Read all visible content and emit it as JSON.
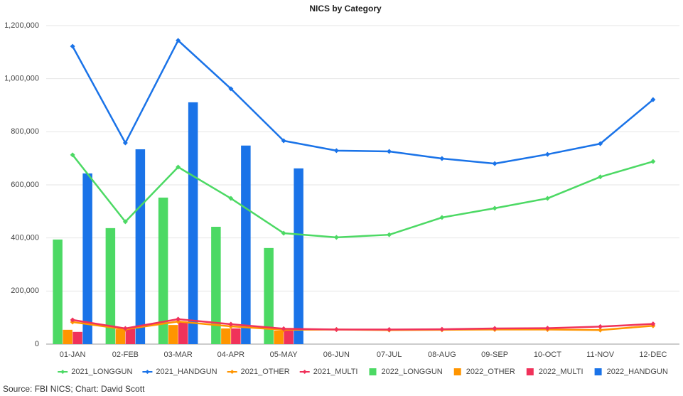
{
  "chart_data": {
    "type": "combo",
    "title": "NICS by Category",
    "source": "Source: FBI NICS; Chart: David Scott",
    "categories": [
      "01-JAN",
      "02-FEB",
      "03-MAR",
      "04-APR",
      "05-MAY",
      "06-JUN",
      "07-JUL",
      "08-AUG",
      "09-SEP",
      "10-OCT",
      "11-NOV",
      "12-DEC"
    ],
    "ylim": [
      0,
      1200000
    ],
    "yticks": [
      0,
      {
        "value": 200000,
        "label": "200,000"
      },
      {
        "value": 400000,
        "label": "400,000"
      },
      {
        "value": 600000,
        "label": "600,000"
      },
      {
        "value": 800000,
        "label": "800,000"
      },
      {
        "value": 1000000,
        "label": "1,000,000"
      },
      {
        "value": 1200000,
        "label": "1,200,000"
      }
    ],
    "grid": true,
    "legend": "bottom",
    "series": [
      {
        "name": "2021_LONGGUN",
        "type": "line",
        "color": "#4cd964",
        "values": [
          713000,
          461000,
          667000,
          549000,
          418000,
          402000,
          412000,
          477000,
          512000,
          549000,
          630000,
          688000
        ]
      },
      {
        "name": "2021_HANDGUN",
        "type": "line",
        "color": "#1a73e8",
        "values": [
          1122000,
          758000,
          1144000,
          962000,
          766000,
          729000,
          726000,
          699000,
          680000,
          715000,
          755000,
          921000
        ]
      },
      {
        "name": "2021_OTHER",
        "type": "line",
        "color": "#ff9500",
        "values": [
          83000,
          56000,
          85000,
          67000,
          54000,
          55000,
          53000,
          54000,
          55000,
          55000,
          53000,
          69000
        ]
      },
      {
        "name": "2021_MULTI",
        "type": "line",
        "color": "#f0325a",
        "values": [
          91000,
          59000,
          94000,
          75000,
          58000,
          55000,
          55000,
          56000,
          59000,
          60000,
          66000,
          76000
        ]
      },
      {
        "name": "2022_LONGGUN",
        "type": "bar",
        "color": "#4cd964",
        "values": [
          394000,
          437000,
          552000,
          442000,
          362000,
          null,
          null,
          null,
          null,
          null,
          null,
          null
        ]
      },
      {
        "name": "2022_OTHER",
        "type": "bar",
        "color": "#ff9500",
        "values": [
          54000,
          56000,
          72000,
          59000,
          51000,
          null,
          null,
          null,
          null,
          null,
          null,
          null
        ]
      },
      {
        "name": "2022_MULTI",
        "type": "bar",
        "color": "#f0325a",
        "values": [
          46000,
          59000,
          83000,
          59000,
          54000,
          null,
          null,
          null,
          null,
          null,
          null,
          null
        ]
      },
      {
        "name": "2022_HANDGUN",
        "type": "bar",
        "color": "#1a73e8",
        "values": [
          643000,
          734000,
          911000,
          748000,
          662000,
          null,
          null,
          null,
          null,
          null,
          null,
          null
        ]
      }
    ]
  }
}
